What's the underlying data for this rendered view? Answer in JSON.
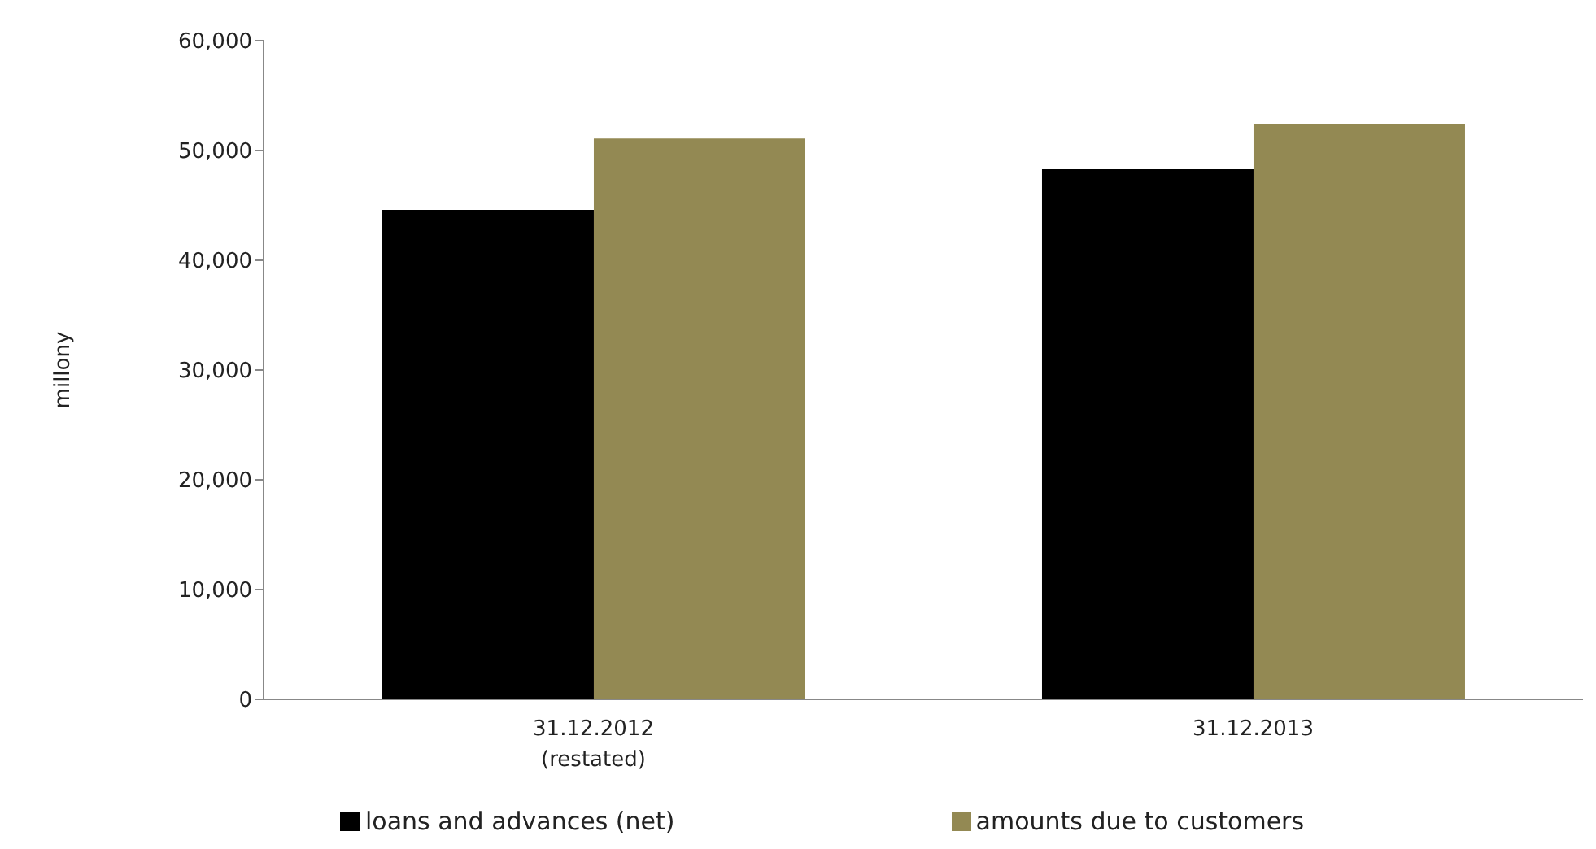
{
  "chart_data": {
    "type": "bar",
    "ylabel": "millony",
    "categories": [
      "31.12.2012\n(restated)",
      "31.12.2013"
    ],
    "series": [
      {
        "name": "loans and advances (net)",
        "color": "#000000",
        "values": [
          44600,
          48300
        ]
      },
      {
        "name": "amounts due to customers",
        "color": "#938953",
        "values": [
          51100,
          52400
        ]
      }
    ],
    "ylim": [
      0,
      60000
    ],
    "yticks": [
      0,
      {
        "value": 10000,
        "label": "10,000"
      },
      {
        "value": 20000,
        "label": "20,000"
      },
      {
        "value": 30000,
        "label": "30,000"
      },
      {
        "value": 40000,
        "label": "40,000"
      },
      {
        "value": 50000,
        "label": "50,000"
      },
      {
        "value": 60000,
        "label": "60,000"
      }
    ],
    "grid": false,
    "legend": "bottom"
  }
}
